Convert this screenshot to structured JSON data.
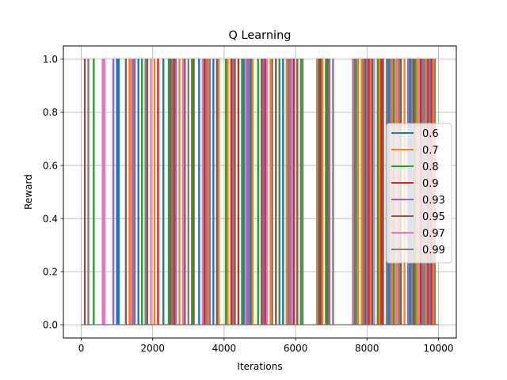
{
  "chart_data": {
    "type": "line",
    "title": "Q Learning",
    "xlabel": "Iterations",
    "ylabel": "Reward",
    "xlim": [
      -500,
      10500
    ],
    "ylim": [
      -0.05,
      1.05
    ],
    "xticks": [
      0,
      2000,
      4000,
      6000,
      8000,
      10000
    ],
    "xtick_labels": [
      "0",
      "2000",
      "4000",
      "6000",
      "8000",
      "10000"
    ],
    "yticks": [
      0.0,
      0.2,
      0.4,
      0.6,
      0.8,
      1.0
    ],
    "ytick_labels": [
      "0.0",
      "0.2",
      "0.4",
      "0.6",
      "0.8",
      "1.0"
    ],
    "grid": true,
    "legend_position": "center-right",
    "x_range": [
      0,
      10000
    ],
    "series": [
      {
        "name": "0.6",
        "color": "#1f77b4",
        "reward1_iterations": [
          1000,
          1050,
          1600,
          2300,
          3300,
          3700,
          4550,
          4750,
          5650,
          6650,
          7700,
          8150,
          8600,
          9200
        ]
      },
      {
        "name": "0.7",
        "color": "#ff7f0e",
        "reward1_iterations": [
          1350,
          2050,
          2750,
          3550,
          3850,
          4100,
          4800,
          5300,
          5750,
          6600,
          6750,
          7750,
          7850,
          8100,
          8350,
          8700,
          8850,
          9050,
          9400,
          9650,
          9850
        ]
      },
      {
        "name": "0.8",
        "color": "#2ca02c",
        "reward1_iterations": [
          350,
          1700,
          2450,
          3100,
          4050,
          4500,
          4950,
          5550,
          6150,
          6850,
          7650,
          8300,
          8750,
          9350
        ]
      },
      {
        "name": "0.9",
        "color": "#d62728",
        "reward1_iterations": [
          2150,
          2600,
          3450,
          4200,
          4400,
          5150,
          5950,
          6700,
          8050,
          8400,
          9500,
          9800
        ]
      },
      {
        "name": "0.93",
        "color": "#9467bd",
        "reward1_iterations": [
          900,
          1500,
          2650,
          3600,
          4650,
          5100,
          5850,
          6950,
          8000,
          8650,
          9150,
          9600,
          9750
        ]
      },
      {
        "name": "0.95",
        "color": "#8c564b",
        "reward1_iterations": [
          100,
          1250,
          1850,
          2500,
          2900,
          3150,
          3800,
          4300,
          5050,
          5450,
          6050,
          6900,
          7950,
          8450,
          8950,
          9300,
          9700
        ]
      },
      {
        "name": "0.97",
        "color": "#e377c2",
        "reward1_iterations": [
          600,
          650,
          1400,
          1950,
          2850,
          3400,
          4600,
          5200,
          5900,
          7600,
          8200,
          8800,
          9450
        ]
      },
      {
        "name": "0.99",
        "color": "#7f7f7f",
        "reward1_iterations": [
          200,
          1450,
          1800,
          2550,
          3000,
          3500,
          4250,
          4700,
          5350,
          5800,
          6200,
          7050,
          7700,
          7900,
          8550,
          8900,
          9250,
          9550,
          9900
        ]
      }
    ]
  }
}
